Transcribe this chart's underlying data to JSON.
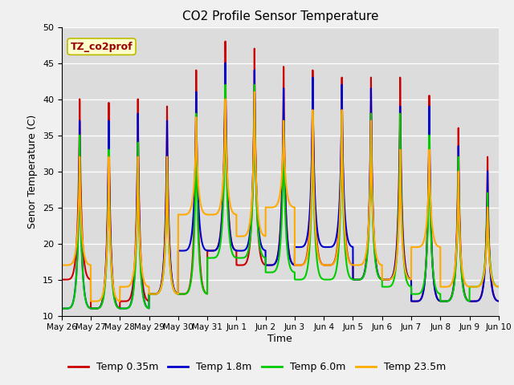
{
  "title": "CO2 Profile Sensor Temperature",
  "xlabel": "Time",
  "ylabel": "Senor Temperature (C)",
  "ylim": [
    10,
    50
  ],
  "background_color": "#dcdcdc",
  "grid_color": "#ffffff",
  "legend_label": "TZ_co2prof",
  "series": {
    "Temp 0.35m": {
      "color": "#cc0000",
      "lw": 1.5
    },
    "Temp 1.8m": {
      "color": "#0000cc",
      "lw": 1.5
    },
    "Temp 6.0m": {
      "color": "#00cc00",
      "lw": 1.5
    },
    "Temp 23.5m": {
      "color": "#ffaa00",
      "lw": 1.5
    }
  },
  "x_tick_labels": [
    "May 26",
    "May 27",
    "May 28",
    "May 29",
    "May 30",
    "May 31",
    "Jun 1",
    "Jun 2",
    "Jun 3",
    "Jun 4",
    "Jun 5",
    "Jun 6",
    "Jun 7",
    "Jun 8",
    "Jun 9",
    "Jun 10"
  ],
  "red_max": [
    40,
    39.5,
    40,
    39,
    44,
    48,
    47,
    44.5,
    44,
    43,
    43,
    43,
    40.5,
    36,
    32
  ],
  "blue_max": [
    37,
    37,
    38,
    37,
    41,
    45,
    44,
    41.5,
    43,
    42,
    41.5,
    39,
    39,
    33.5,
    30
  ],
  "green_max": [
    35,
    33,
    34,
    32,
    38,
    42,
    42,
    37,
    38,
    38,
    38,
    38,
    35,
    32,
    27
  ],
  "orange_max": [
    32,
    32,
    32,
    32,
    37.5,
    40,
    41,
    37,
    38.5,
    38.5,
    37,
    33,
    33,
    30,
    25
  ],
  "red_min": [
    15,
    11,
    12,
    13,
    13,
    19,
    17,
    17,
    17,
    17,
    15,
    15,
    12,
    12,
    12
  ],
  "blue_min": [
    11,
    11,
    11,
    13,
    19,
    19,
    19,
    17,
    19.5,
    19.5,
    15,
    15,
    12,
    12,
    12
  ],
  "green_min": [
    11,
    11,
    11,
    13,
    13,
    18,
    18,
    16,
    15,
    15,
    15,
    14,
    13,
    12,
    14
  ],
  "orange_min": [
    17,
    12,
    14,
    13,
    24,
    24,
    21,
    25,
    17,
    17,
    17,
    15,
    19.5,
    14,
    14
  ],
  "peak_phase": 0.62,
  "sharp_exp": 4.0
}
